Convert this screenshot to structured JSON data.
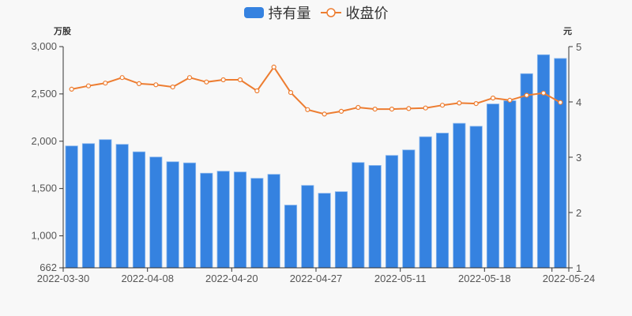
{
  "legend": {
    "bar_label": "持有量",
    "line_label": "收盘价",
    "bar_color": "#3582e0",
    "line_color": "#ed7d31"
  },
  "axes": {
    "left_unit": "万股",
    "right_unit": "元",
    "left_ticks": [
      "3,000",
      "2,500",
      "2,000",
      "1,500",
      "1,000",
      "662"
    ],
    "right_ticks": [
      "5",
      "4",
      "3",
      "2",
      "1"
    ],
    "x_ticks": [
      "2022-03-30",
      "2022-04-08",
      "2022-04-20",
      "2022-04-27",
      "2022-05-11",
      "2022-05-18",
      "2022-05-24"
    ]
  },
  "chart_data": {
    "type": "bar",
    "title": "",
    "xlabel": "",
    "ylabel": "万股",
    "y2label": "元",
    "ylim": [
      662,
      3000
    ],
    "y2lim": [
      1,
      5
    ],
    "grid": false,
    "legend_position": "top",
    "x_tick_labels": [
      "2022-03-30",
      "2022-04-08",
      "2022-04-20",
      "2022-04-27",
      "2022-05-11",
      "2022-05-18",
      "2022-05-24"
    ],
    "series": [
      {
        "name": "持有量",
        "type": "bar",
        "axis": "left",
        "values": [
          1950,
          1975,
          2017,
          1967,
          1888,
          1833,
          1783,
          1771,
          1662,
          1683,
          1675,
          1608,
          1650,
          1325,
          1533,
          1450,
          1467,
          1775,
          1744,
          1850,
          1908,
          2047,
          2086,
          2189,
          2158,
          2394,
          2428,
          2714,
          2914,
          2875
        ]
      },
      {
        "name": "收盘价",
        "type": "line",
        "axis": "right",
        "values": [
          4.23,
          4.29,
          4.34,
          4.44,
          4.33,
          4.31,
          4.27,
          4.44,
          4.36,
          4.4,
          4.4,
          4.2,
          4.63,
          4.17,
          3.86,
          3.78,
          3.83,
          3.9,
          3.87,
          3.87,
          3.88,
          3.89,
          3.94,
          3.98,
          3.97,
          4.07,
          4.03,
          4.12,
          4.16,
          3.99
        ]
      }
    ]
  }
}
